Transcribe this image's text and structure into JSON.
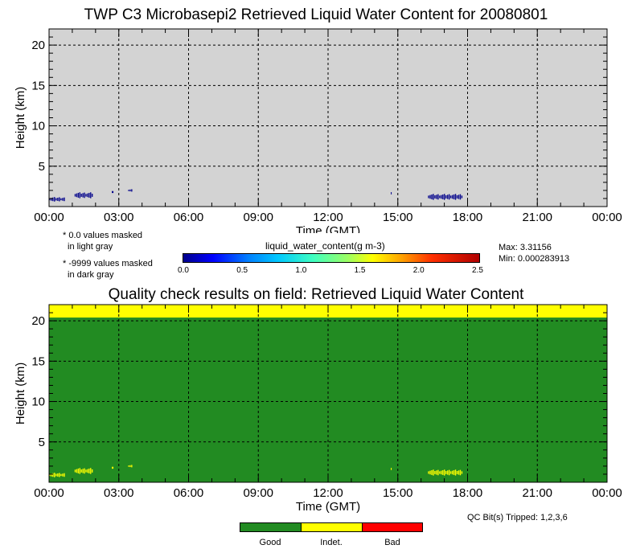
{
  "top_plot": {
    "title": "TWP C3 Microbasepi2 Retrieved Liquid Water Content for 20080801"
  },
  "qc_plot": {
    "title": "Quality check results on field: Retrieved Liquid Water Content"
  },
  "notes": {
    "light_gray_line1": "* 0.0 values masked",
    "light_gray_line2": "in light gray",
    "dark_gray_line1": "* -9999 values masked",
    "dark_gray_line2": "in dark gray"
  },
  "colorbar": {
    "label": "liquid_water_content(g m-3)",
    "ticks": [
      "0.0",
      "0.5",
      "1.0",
      "1.5",
      "2.0",
      "2.5"
    ],
    "max_text": "Max: 3.31156",
    "min_text": "Min: 0.000283913"
  },
  "qc_info": {
    "bits_text": "QC Bit(s) Tripped: 1,2,3,6",
    "legend": [
      {
        "label": "Good",
        "color": "#228B22"
      },
      {
        "label": "Indet.",
        "color": "#FFFF00"
      },
      {
        "label": "Bad",
        "color": "#FF0000"
      }
    ]
  },
  "colors": {
    "masked_zero": "#D3D3D3",
    "qc_good": "#228B22",
    "qc_indeterminate": "#FFFF00",
    "lwc_low": "#00008B"
  },
  "chart_data": [
    {
      "type": "heatmap",
      "title": "TWP C3 Microbasepi2 Retrieved Liquid Water Content for 20080801",
      "xlabel": "Time (GMT)",
      "ylabel": "Height (km)",
      "x_ticks": [
        "00:00",
        "03:00",
        "06:00",
        "09:00",
        "12:00",
        "15:00",
        "18:00",
        "21:00",
        "00:00"
      ],
      "y_ticks": [
        "5",
        "10",
        "15",
        "20"
      ],
      "xlim_hours": [
        0,
        24
      ],
      "ylim_km": [
        0,
        22
      ],
      "grid": true,
      "background": "masked 0.0 values (light gray)",
      "data_patches": [
        {
          "t_start": 0.0,
          "t_end": 0.7,
          "h_low": 0.6,
          "h_high": 1.2,
          "value_approx": 0.05
        },
        {
          "t_start": 1.1,
          "t_end": 1.9,
          "h_low": 1.0,
          "h_high": 1.8,
          "value_approx": 0.05
        },
        {
          "t_start": 2.7,
          "t_end": 2.8,
          "h_low": 1.5,
          "h_high": 2.1,
          "value_approx": 0.05
        },
        {
          "t_start": 3.4,
          "t_end": 3.6,
          "h_low": 1.8,
          "h_high": 2.2,
          "value_approx": 0.05
        },
        {
          "t_start": 14.7,
          "t_end": 14.75,
          "h_low": 1.3,
          "h_high": 2.0,
          "value_approx": 0.05
        },
        {
          "t_start": 16.3,
          "t_end": 17.8,
          "h_low": 0.8,
          "h_high": 1.6,
          "value_approx": 0.05
        }
      ]
    },
    {
      "type": "heatmap",
      "title": "Quality check results on field: Retrieved Liquid Water Content",
      "xlabel": "Time (GMT)",
      "ylabel": "Height (km)",
      "x_ticks": [
        "00:00",
        "03:00",
        "06:00",
        "09:00",
        "12:00",
        "15:00",
        "18:00",
        "21:00",
        "00:00"
      ],
      "y_ticks": [
        "5",
        "10",
        "15",
        "20"
      ],
      "xlim_hours": [
        0,
        24
      ],
      "ylim_km": [
        0,
        22
      ],
      "grid": true,
      "categories": [
        "Good",
        "Indet.",
        "Bad"
      ],
      "bands": [
        {
          "category": "Good",
          "h_low": 0,
          "h_high": 20.4
        },
        {
          "category": "Indet.",
          "h_low": 20.4,
          "h_high": 22
        }
      ],
      "indet_patches": [
        {
          "t_start": 0.0,
          "t_end": 0.7,
          "h_low": 0.6,
          "h_high": 1.2
        },
        {
          "t_start": 1.1,
          "t_end": 1.9,
          "h_low": 1.0,
          "h_high": 1.8
        },
        {
          "t_start": 2.7,
          "t_end": 2.8,
          "h_low": 1.5,
          "h_high": 2.1
        },
        {
          "t_start": 3.4,
          "t_end": 3.6,
          "h_low": 1.8,
          "h_high": 2.2
        },
        {
          "t_start": 14.7,
          "t_end": 14.75,
          "h_low": 1.3,
          "h_high": 2.0
        },
        {
          "t_start": 16.3,
          "t_end": 17.8,
          "h_low": 0.8,
          "h_high": 1.6
        }
      ]
    }
  ]
}
